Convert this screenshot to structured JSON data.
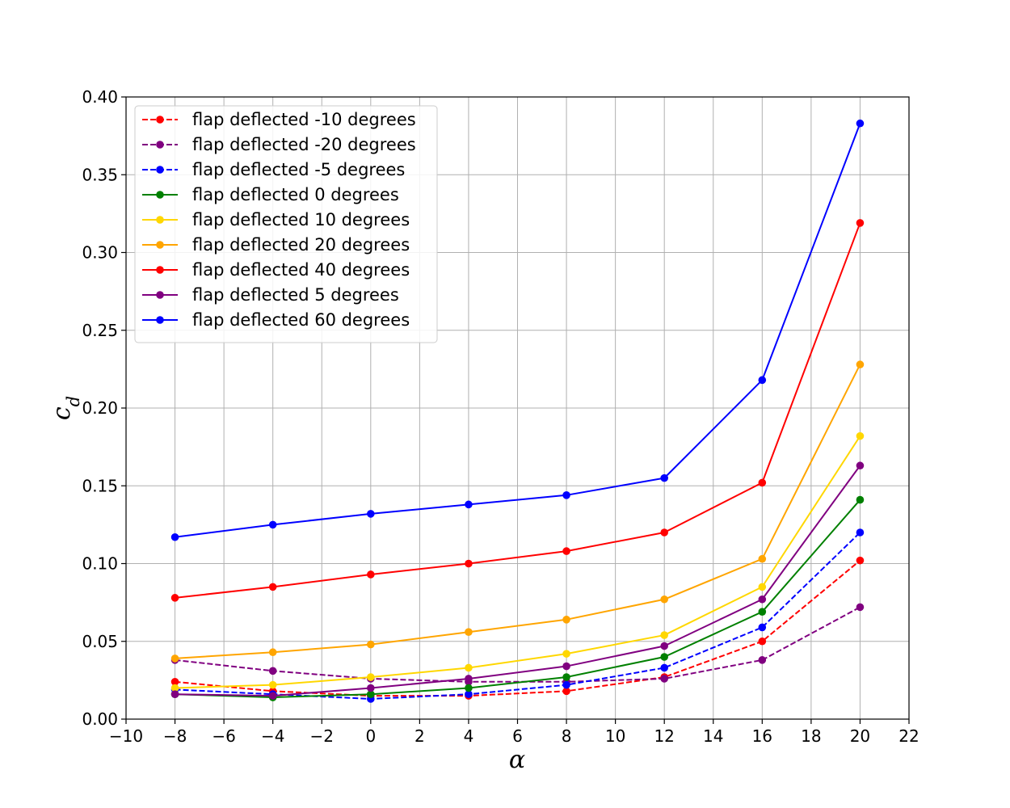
{
  "chart_data": {
    "type": "line",
    "title": "",
    "xlabel": "α",
    "ylabel": "c_d",
    "xlim": [
      -10,
      22
    ],
    "ylim": [
      0,
      0.4
    ],
    "xticks": [
      -10,
      -8,
      -6,
      -4,
      -2,
      0,
      2,
      4,
      6,
      8,
      10,
      12,
      14,
      16,
      18,
      20,
      22
    ],
    "yticks": [
      0.0,
      0.05,
      0.1,
      0.15,
      0.2,
      0.25,
      0.3,
      0.35,
      0.4
    ],
    "xtick_labels": [
      "−10",
      "−8",
      "−6",
      "−4",
      "−2",
      "0",
      "2",
      "4",
      "6",
      "8",
      "10",
      "12",
      "14",
      "16",
      "18",
      "20",
      "22"
    ],
    "ytick_labels": [
      "0.00",
      "0.05",
      "0.10",
      "0.15",
      "0.20",
      "0.25",
      "0.30",
      "0.35",
      "0.40"
    ],
    "grid": true,
    "legend_position": "top-left",
    "x": [
      -8,
      -4,
      0,
      4,
      8,
      12,
      16,
      20
    ],
    "series": [
      {
        "name": "flap deflected -10 degrees",
        "color": "#ff0000",
        "dashed": true,
        "values": [
          0.024,
          0.018,
          0.015,
          0.015,
          0.018,
          0.027,
          0.05,
          0.102
        ]
      },
      {
        "name": "flap deflected -20 degrees",
        "color": "#800080",
        "dashed": true,
        "values": [
          0.038,
          0.031,
          0.026,
          0.024,
          0.024,
          0.026,
          0.038,
          0.072
        ]
      },
      {
        "name": "flap deflected -5 degrees",
        "color": "#0000ff",
        "dashed": true,
        "values": [
          0.019,
          0.016,
          0.013,
          0.016,
          0.022,
          0.033,
          0.059,
          0.12
        ]
      },
      {
        "name": "flap deflected 0 degrees",
        "color": "#008000",
        "dashed": false,
        "values": [
          0.016,
          0.014,
          0.016,
          0.02,
          0.027,
          0.04,
          0.069,
          0.141
        ]
      },
      {
        "name": "flap deflected 10 degrees",
        "color": "#ffd700",
        "dashed": false,
        "values": [
          0.02,
          0.022,
          0.027,
          0.033,
          0.042,
          0.054,
          0.085,
          0.182
        ]
      },
      {
        "name": "flap deflected 20 degrees",
        "color": "#ffa500",
        "dashed": false,
        "values": [
          0.039,
          0.043,
          0.048,
          0.056,
          0.064,
          0.077,
          0.103,
          0.228
        ]
      },
      {
        "name": "flap deflected 40 degrees",
        "color": "#ff0000",
        "dashed": false,
        "values": [
          0.078,
          0.085,
          0.093,
          0.1,
          0.108,
          0.12,
          0.152,
          0.319
        ]
      },
      {
        "name": "flap deflected 5 degrees",
        "color": "#800080",
        "dashed": false,
        "values": [
          0.016,
          0.015,
          0.02,
          0.026,
          0.034,
          0.047,
          0.077,
          0.163
        ]
      },
      {
        "name": "flap deflected 60 degrees",
        "color": "#0000ff",
        "dashed": false,
        "values": [
          0.117,
          0.125,
          0.132,
          0.138,
          0.144,
          0.155,
          0.218,
          0.383
        ]
      }
    ]
  }
}
